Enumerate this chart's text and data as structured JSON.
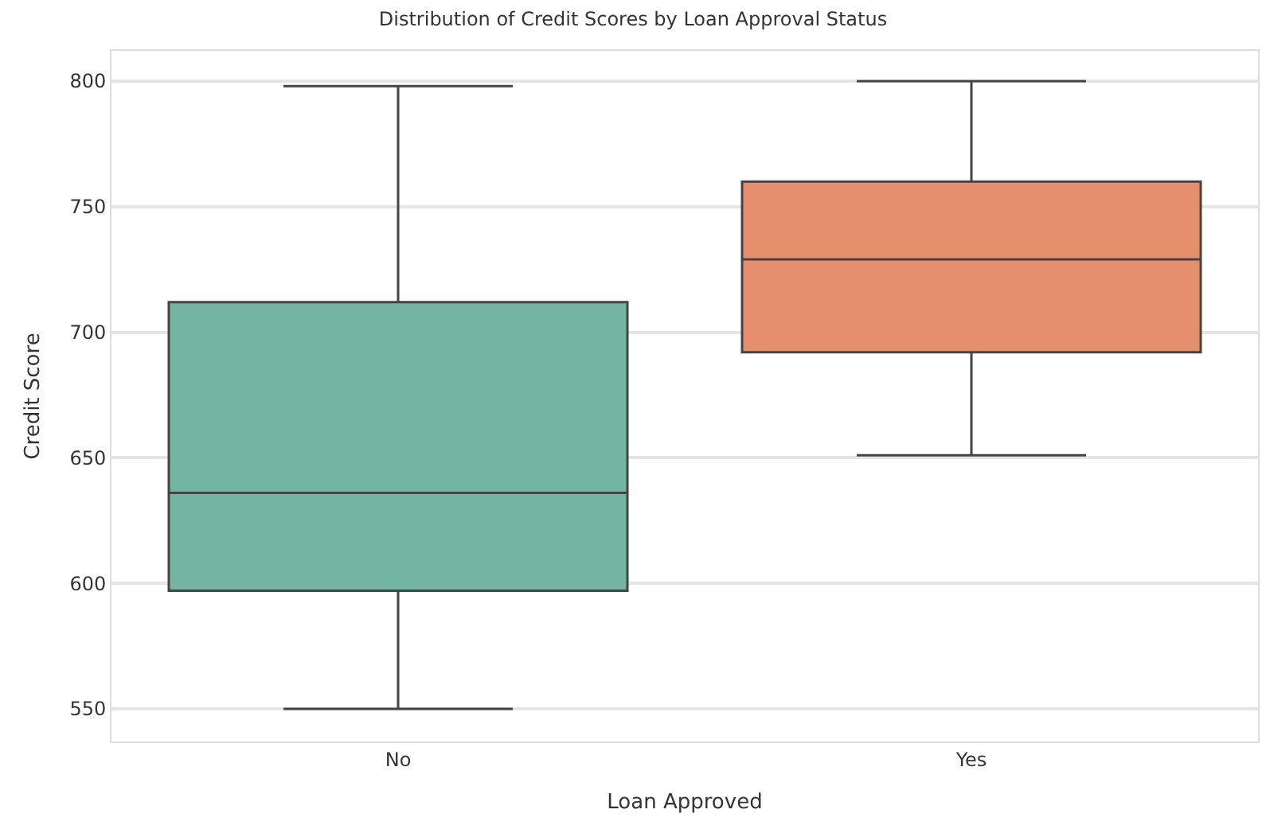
{
  "chart_data": {
    "type": "box",
    "title": "Distribution of Credit Scores by Loan Approval Status",
    "xlabel": "Loan Approved",
    "ylabel": "Credit Score",
    "categories": [
      "No",
      "Yes"
    ],
    "colors": [
      "#72b6a1",
      "#e58f6c"
    ],
    "boxes": [
      {
        "low": 550,
        "q1": 597,
        "median": 636,
        "q3": 712,
        "high": 798
      },
      {
        "low": 651,
        "q1": 692,
        "median": 729,
        "q3": 760,
        "high": 800
      }
    ],
    "ylim": [
      537,
      812
    ],
    "yticks": [
      550,
      600,
      650,
      700,
      750,
      800
    ],
    "grid": "y"
  }
}
